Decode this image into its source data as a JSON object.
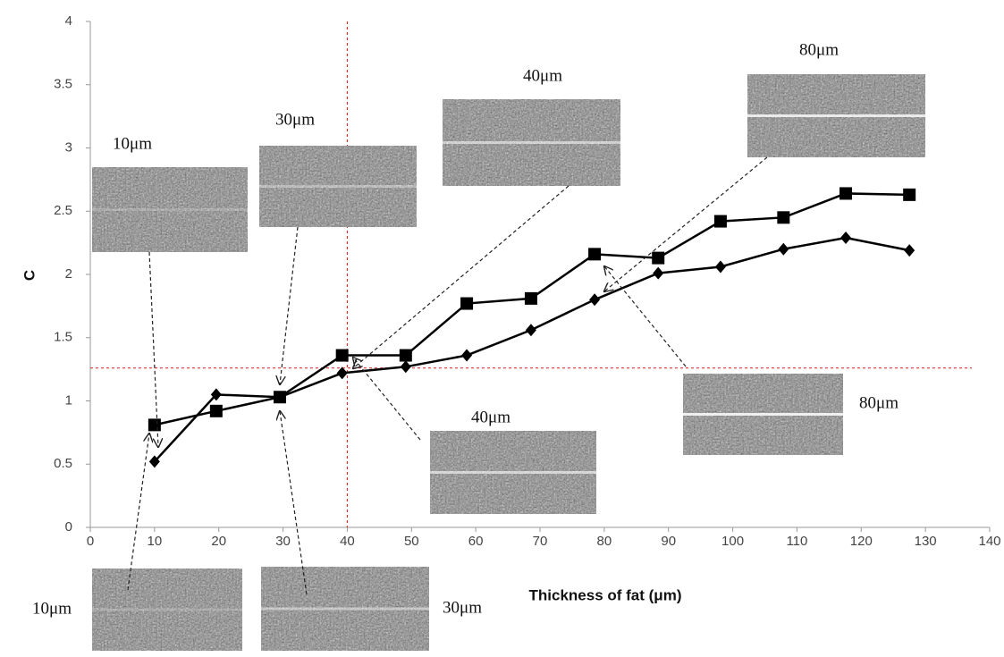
{
  "chart_data": {
    "type": "line",
    "y_label": "C",
    "x_label": "Thickness of  fat  (μm)",
    "x": [
      10,
      19.6,
      29.5,
      39.2,
      49.1,
      58.6,
      68.6,
      78.5,
      88.4,
      98.1,
      107.9,
      117.6,
      127.5
    ],
    "series": [
      {
        "color": "#000000",
        "marker": "square",
        "values": [
          0.81,
          0.92,
          1.03,
          1.36,
          1.36,
          1.77,
          1.81,
          2.16,
          2.13,
          2.42,
          2.45,
          2.64,
          2.63
        ]
      },
      {
        "color": "#000000",
        "marker": "diamond",
        "values": [
          0.52,
          1.05,
          1.03,
          1.22,
          1.27,
          1.36,
          1.56,
          1.8,
          2.01,
          2.06,
          2.2,
          2.29,
          2.19
        ]
      }
    ],
    "xlim": [
      0,
      140
    ],
    "ylim": [
      0,
      4
    ],
    "xticks": [
      0,
      10,
      20,
      30,
      40,
      50,
      60,
      70,
      80,
      90,
      100,
      110,
      120,
      130,
      140
    ],
    "yticks": [
      0,
      0.5,
      1,
      1.5,
      2,
      2.5,
      3,
      3.5,
      4
    ],
    "reference_lines": {
      "x": 40,
      "y": 1.26,
      "color": "#e03030"
    },
    "annotations": [
      {
        "label": "10μm"
      },
      {
        "label": "30μm"
      },
      {
        "label": "40μm"
      },
      {
        "label": "80μm"
      },
      {
        "label": "80μm"
      },
      {
        "label": "40μm"
      },
      {
        "label": "10μm"
      },
      {
        "label": "30μm"
      }
    ]
  }
}
